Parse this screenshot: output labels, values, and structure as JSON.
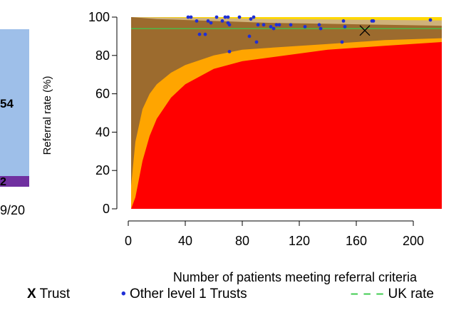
{
  "left_panel": {
    "value_large": "54",
    "value_small": "2",
    "period_label": "9/20",
    "colors": {
      "large": "#9ebfe9",
      "small": "#7030a0"
    }
  },
  "chart_data": {
    "type": "scatter",
    "title": "",
    "xlabel": "Number of patients meeting referral criteria",
    "ylabel": "Referral rate (%)",
    "xlim": [
      0,
      220
    ],
    "ylim": [
      0,
      100
    ],
    "x_ticks": [
      0,
      40,
      80,
      120,
      160,
      200
    ],
    "y_ticks": [
      0,
      20,
      40,
      60,
      80,
      100
    ],
    "grid": false,
    "uk_rate": 94,
    "trust": {
      "name": "Trust",
      "x": 166,
      "y": 93
    },
    "funnel_bands": {
      "colors": [
        "#ff0000",
        "#ffa500",
        "#9c6b2e",
        "#ffd700"
      ],
      "outer_limit_points": [
        [
          2,
          0
        ],
        [
          5,
          6
        ],
        [
          10,
          25
        ],
        [
          15,
          38
        ],
        [
          20,
          47
        ],
        [
          30,
          58
        ],
        [
          40,
          65
        ],
        [
          60,
          73
        ],
        [
          80,
          77
        ],
        [
          100,
          79
        ],
        [
          140,
          83
        ],
        [
          180,
          85
        ],
        [
          220,
          87
        ]
      ],
      "inner_limit_points": [
        [
          2,
          12
        ],
        [
          5,
          35
        ],
        [
          10,
          52
        ],
        [
          15,
          60
        ],
        [
          20,
          65
        ],
        [
          30,
          71
        ],
        [
          40,
          75
        ],
        [
          60,
          80
        ],
        [
          80,
          83
        ],
        [
          100,
          84
        ],
        [
          140,
          86
        ],
        [
          180,
          88
        ],
        [
          220,
          89
        ]
      ],
      "upper_brown_points": [
        [
          2,
          100
        ],
        [
          20,
          99
        ],
        [
          60,
          98
        ],
        [
          100,
          97
        ],
        [
          140,
          96.5
        ],
        [
          180,
          96
        ],
        [
          220,
          95.5
        ]
      ],
      "upper_tan_points": [
        [
          2,
          100
        ],
        [
          20,
          99.8
        ],
        [
          60,
          99.5
        ],
        [
          100,
          99
        ],
        [
          140,
          98.8
        ],
        [
          180,
          98.5
        ],
        [
          220,
          98.3
        ]
      ]
    },
    "series": [
      {
        "name": "Other level 1 Trusts",
        "color": "#1f2fd6",
        "points": [
          [
            42,
            100
          ],
          [
            44,
            100
          ],
          [
            48,
            98
          ],
          [
            50,
            91
          ],
          [
            54,
            91
          ],
          [
            56,
            98
          ],
          [
            58,
            97
          ],
          [
            62,
            100
          ],
          [
            66,
            98
          ],
          [
            68,
            100
          ],
          [
            70,
            100
          ],
          [
            70,
            97
          ],
          [
            71,
            96
          ],
          [
            71,
            82
          ],
          [
            78,
            100
          ],
          [
            85,
            90
          ],
          [
            86,
            99
          ],
          [
            88,
            100
          ],
          [
            90,
            87
          ],
          [
            91,
            96
          ],
          [
            95,
            96
          ],
          [
            100,
            95
          ],
          [
            102,
            94
          ],
          [
            104,
            96
          ],
          [
            106,
            96
          ],
          [
            114,
            96
          ],
          [
            124,
            95
          ],
          [
            134,
            96
          ],
          [
            135,
            94
          ],
          [
            150,
            87
          ],
          [
            151,
            98
          ],
          [
            152,
            95
          ],
          [
            171,
            98
          ],
          [
            172,
            98
          ],
          [
            212,
            98.5
          ]
        ]
      }
    ]
  },
  "legend": {
    "trust_symbol": "X",
    "trust_label": "Trust",
    "dot_symbol": "•",
    "dot_label": "Other level 1 Trusts",
    "dash_symbol": "– – –",
    "dash_label": "UK rate"
  }
}
